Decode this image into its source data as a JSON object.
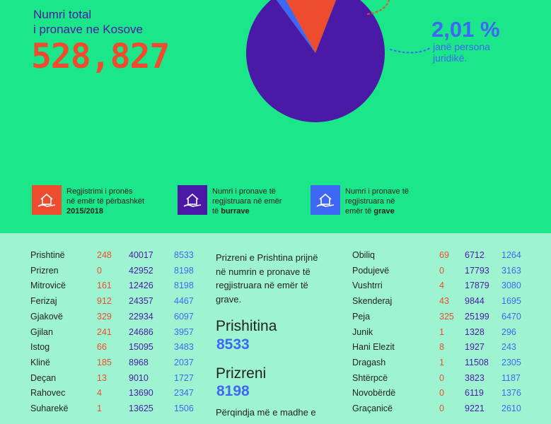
{
  "header": {
    "total_label_line1": "Numri total",
    "total_label_line2": "i pronave ne Kosove",
    "total_value": "528,827",
    "juridical_pct": "2,01 %",
    "juridical_desc_line1": "janë persona",
    "juridical_desc_line2": "juridikë."
  },
  "legend": [
    {
      "line1": "Regjistrimi i pronës",
      "line2": "në emër të përbashkët",
      "line3_plain": "",
      "line3_bold": "2015/2018",
      "color": "#ee4c2e",
      "icon": "house-hand-icon"
    },
    {
      "line1": "Numri i pronave të",
      "line2": "regjistruara në emër",
      "line3_plain": "të ",
      "line3_bold": "burrave",
      "color": "#4a1aa6",
      "icon": "house-hand-icon"
    },
    {
      "line1": "Numri i pronave të",
      "line2": "regjistruara në",
      "line3_plain": "emër të ",
      "line3_bold": "grave",
      "color": "#3f67f5",
      "icon": "house-hand-icon"
    }
  ],
  "middle": {
    "intro": "Prizreni e Prishtina prijnë në numrin e pronave të regjistruara në emër të grave.",
    "city1_name": "Prishitina",
    "city1_value": "8533",
    "city2_name": "Prizreni",
    "city2_value": "8198",
    "footer_text": "Përqindja më e madhe e"
  },
  "chart_data": [
    {
      "type": "pie",
      "title": "",
      "slices": [
        {
          "name": "",
          "value": 84.0,
          "color": "#4a1aa6"
        },
        {
          "name": "",
          "value": 13.99,
          "color": "#ee4c2e"
        },
        {
          "name": "",
          "value": 2.01,
          "color": "#3f67f5"
        }
      ]
    },
    {
      "type": "table",
      "columns": [
        "Komuna",
        "Të përbashkët",
        "Burra",
        "Gra"
      ],
      "left_rows": [
        [
          "Prishtinë",
          "248",
          "40017",
          "8533"
        ],
        [
          "Prizren",
          "0",
          "42952",
          "8198"
        ],
        [
          "Mitrovicë",
          "161",
          "12426",
          "8198"
        ],
        [
          "Ferizaj",
          "912",
          "24357",
          "4467"
        ],
        [
          "Gjakovë",
          "329",
          "22934",
          "6097"
        ],
        [
          "Gjilan",
          "241",
          "24686",
          "3957"
        ],
        [
          "Istog",
          "66",
          "15095",
          "3483"
        ],
        [
          "Klinë",
          "185",
          "8968",
          "2037"
        ],
        [
          "Deçan",
          "13",
          "9010",
          "1727"
        ],
        [
          "Rahovec",
          "4",
          "13690",
          "2347"
        ],
        [
          "Suharekë",
          "1",
          "13625",
          "1506"
        ]
      ],
      "right_rows": [
        [
          "Obiliq",
          "69",
          "6712",
          "1264"
        ],
        [
          "Podujevë",
          "0",
          "17793",
          "3163"
        ],
        [
          "Vushtrri",
          "4",
          "17879",
          "3080"
        ],
        [
          "Skenderaj",
          "43",
          "9844",
          "1695"
        ],
        [
          "Peja",
          "325",
          "25199",
          "6470"
        ],
        [
          "Junik",
          "1",
          "1328",
          "296"
        ],
        [
          "Hani Elezit",
          "8",
          "1927",
          "243"
        ],
        [
          "Dragash",
          "1",
          "11508",
          "2305"
        ],
        [
          "Shtërpcë",
          "0",
          "3823",
          "1187"
        ],
        [
          "Novobërdë",
          "0",
          "6119",
          "1376"
        ],
        [
          "Graçanicë",
          "0",
          "9221",
          "2610"
        ]
      ]
    }
  ]
}
